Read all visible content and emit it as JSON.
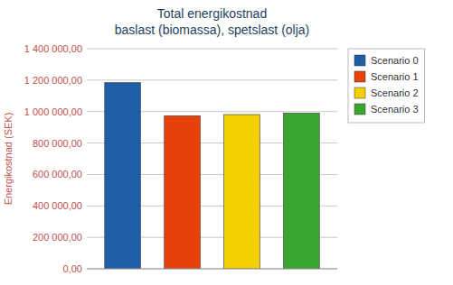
{
  "chart_data": {
    "type": "bar",
    "title": "Total energikostnad",
    "subtitle": "baslast (biomassa), spetslast (olja)",
    "y_label": "Energikostnad (SEK)",
    "categories": [
      "Scenario 0",
      "Scenario 1",
      "Scenario 2",
      "Scenario 3"
    ],
    "values": [
      1184000,
      973000,
      981000,
      990000
    ],
    "colors": [
      "#1F5FA6",
      "#E8420A",
      "#F5D000",
      "#3BA62F"
    ],
    "ylim": [
      0,
      1400000
    ],
    "yticks": [
      {
        "value": 0,
        "label": "0,00"
      },
      {
        "value": 200000,
        "label": "200 000,00"
      },
      {
        "value": 400000,
        "label": "400 000,00"
      },
      {
        "value": 600000,
        "label": "600 000,00"
      },
      {
        "value": 800000,
        "label": "800 000,00"
      },
      {
        "value": 1000000,
        "label": "1 000 000,00"
      },
      {
        "value": 1200000,
        "label": "1 200 000,00"
      },
      {
        "value": 1400000,
        "label": "1 400 000,00"
      }
    ],
    "grid": true,
    "legend": "right",
    "tick_labels": "y"
  }
}
